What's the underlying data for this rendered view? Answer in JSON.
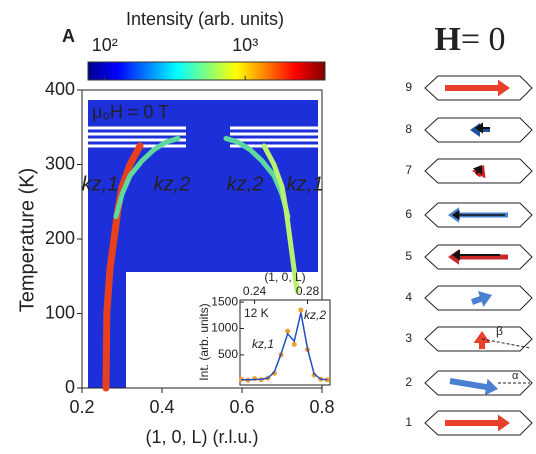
{
  "panel_label": "A",
  "chart_data": [
    {
      "type": "colorbar",
      "title": "Intensity (arb. units)",
      "log": true,
      "xlim": [
        76,
        3700
      ],
      "xticks": [
        {
          "value": 100,
          "label": "10²"
        },
        {
          "value": 1000,
          "label": "10³"
        }
      ],
      "colormap": [
        "#00008f",
        "#0000ff",
        "#0080ff",
        "#00ffff",
        "#80ff80",
        "#ffff00",
        "#ff8000",
        "#ff0000",
        "#800000"
      ]
    },
    {
      "type": "line",
      "annotation": "μ₀H = 0 T",
      "xlabel": "(1, 0, L) (r.l.u.)",
      "ylabel": "Temperature (K)",
      "xlim": [
        0.2,
        0.8
      ],
      "xticks": [
        0.2,
        0.4,
        0.6,
        0.8
      ],
      "ylim": [
        0,
        400
      ],
      "yticks": [
        0,
        100,
        200,
        300,
        400
      ],
      "series": [
        {
          "name": "kz,1",
          "color": "#e8401c",
          "x": [
            0.26,
            0.262,
            0.27,
            0.28,
            0.29,
            0.3,
            0.32,
            0.345
          ],
          "values": [
            0,
            100,
            160,
            200,
            240,
            270,
            300,
            325
          ]
        },
        {
          "name": "kz,2",
          "color": "#5fd8a0",
          "x": [
            0.285,
            0.3,
            0.32,
            0.35,
            0.38,
            0.41,
            0.44
          ],
          "values": [
            230,
            260,
            285,
            305,
            320,
            330,
            335
          ]
        },
        {
          "name": "kz,2",
          "color": "#5fd8a0",
          "x": [
            0.56,
            0.59,
            0.62,
            0.65,
            0.68,
            0.7,
            0.715
          ],
          "values": [
            335,
            330,
            320,
            305,
            285,
            260,
            230
          ]
        },
        {
          "name": "kz,1",
          "color": "#b8f070",
          "x": [
            0.655,
            0.68,
            0.7,
            0.71,
            0.72,
            0.73,
            0.738
          ],
          "values": [
            325,
            300,
            270,
            240,
            200,
            160,
            130
          ]
        }
      ]
    },
    {
      "type": "line",
      "xlabel": "(1, 0, L)",
      "ylabel": "Int. (arb. units)",
      "annotation": "12 K",
      "peak_labels": [
        "kz,1",
        "kz,2"
      ],
      "xlim": [
        0.229,
        0.297
      ],
      "xticks": [
        0.24,
        0.28
      ],
      "ylim": [
        -70,
        1540
      ],
      "yticks": [
        500,
        1000,
        1500
      ],
      "x": [
        0.23,
        0.235,
        0.24,
        0.245,
        0.25,
        0.255,
        0.26,
        0.265,
        0.27,
        0.275,
        0.28,
        0.285,
        0.29,
        0.295
      ],
      "series": [
        {
          "color": "#f0a030",
          "values": [
            40,
            20,
            50,
            30,
            60,
            150,
            500,
            950,
            700,
            1350,
            600,
            120,
            40,
            30
          ]
        },
        {
          "color": "#2050c0",
          "values": [
            30,
            30,
            35,
            40,
            60,
            180,
            520,
            900,
            760,
            1300,
            620,
            140,
            40,
            30
          ]
        }
      ]
    }
  ],
  "diagram": {
    "title_symbol": "H",
    "title_rest": "= 0",
    "rows": [
      "9",
      "8",
      "7",
      "6",
      "5",
      "4",
      "3",
      "2",
      "1"
    ],
    "angle_beta": "β",
    "angle_alpha": "α"
  }
}
